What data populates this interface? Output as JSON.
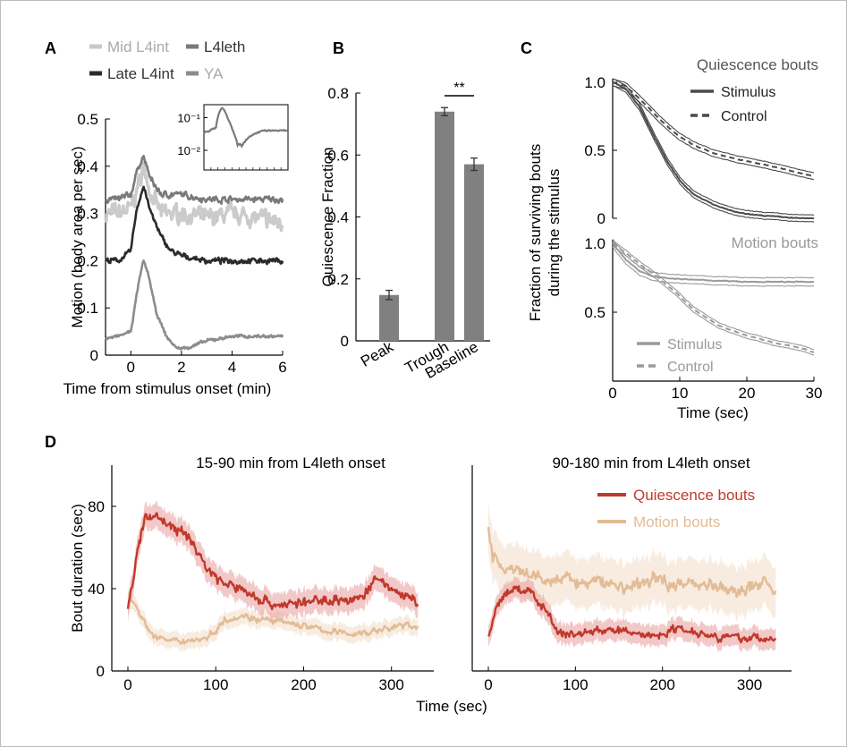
{
  "figure": {
    "frame_color": "#bdbdbd"
  },
  "chart_data": [
    {
      "panel": "A",
      "type": "line",
      "xlabel": "Time from stimulus onset (min)",
      "ylabel": "Motion (body area per sec)",
      "xlim": [
        -1,
        6
      ],
      "ylim": [
        0,
        0.5
      ],
      "xticks": [
        0,
        2,
        4,
        6
      ],
      "yticks": [
        0,
        0.1,
        0.2,
        0.3,
        0.4,
        0.5
      ],
      "xtick_labels": [
        "0",
        "2",
        "4",
        "6"
      ],
      "ytick_labels": [
        "0",
        "0.1",
        "0.2",
        "0.3",
        "0.4",
        "0.5"
      ],
      "legend": {
        "placement": "top",
        "entries": [
          {
            "label": "Mid L4int",
            "color": "#c8c8c8"
          },
          {
            "label": "L4leth",
            "color": "#7a7a7a"
          },
          {
            "label": "Late L4int",
            "color": "#2b2b2b"
          },
          {
            "label": "YA",
            "color": "#8c8c8c"
          }
        ]
      },
      "series": [
        {
          "name": "Mid L4int",
          "color": "#c8c8c8",
          "noise": 0.022,
          "x": [
            -1,
            -0.5,
            0,
            0.3,
            0.5,
            0.8,
            1.2,
            2,
            3,
            4,
            5,
            6
          ],
          "y": [
            0.3,
            0.3,
            0.31,
            0.36,
            0.4,
            0.34,
            0.3,
            0.3,
            0.29,
            0.3,
            0.29,
            0.28
          ]
        },
        {
          "name": "L4leth",
          "color": "#7a7a7a",
          "noise": 0.008,
          "x": [
            -1,
            -0.5,
            0,
            0.3,
            0.5,
            0.8,
            1.2,
            2,
            3,
            4,
            5,
            6
          ],
          "y": [
            0.33,
            0.33,
            0.34,
            0.4,
            0.42,
            0.37,
            0.34,
            0.34,
            0.33,
            0.33,
            0.33,
            0.33
          ]
        },
        {
          "name": "Late L4int",
          "color": "#2b2b2b",
          "noise": 0.007,
          "x": [
            -1,
            -0.5,
            0,
            0.2,
            0.5,
            0.8,
            1.2,
            1.6,
            2,
            3,
            4,
            5,
            6
          ],
          "y": [
            0.2,
            0.2,
            0.22,
            0.3,
            0.36,
            0.3,
            0.25,
            0.22,
            0.21,
            0.2,
            0.2,
            0.2,
            0.2
          ]
        },
        {
          "name": "YA",
          "color": "#8c8c8c",
          "noise": 0.004,
          "x": [
            -1,
            -0.5,
            0,
            0.3,
            0.5,
            0.7,
            1.0,
            1.4,
            1.8,
            2.2,
            3,
            4,
            5,
            6
          ],
          "y": [
            0.035,
            0.04,
            0.05,
            0.15,
            0.2,
            0.17,
            0.09,
            0.04,
            0.015,
            0.015,
            0.03,
            0.04,
            0.04,
            0.04
          ]
        }
      ],
      "inset": {
        "yscale": "log",
        "ytick_labels": [
          "10⁻¹",
          "10⁻²"
        ],
        "yticks": [
          0.1,
          0.01
        ],
        "ylim": [
          0.0025,
          0.25
        ],
        "xlim": [
          -1,
          6
        ],
        "series": {
          "name": "YA",
          "color": "#7a7a7a",
          "x": [
            -1,
            -0.5,
            0,
            0.3,
            0.5,
            0.7,
            1.0,
            1.4,
            1.8,
            2.2,
            3,
            4,
            5,
            6
          ],
          "y": [
            0.035,
            0.04,
            0.05,
            0.15,
            0.2,
            0.17,
            0.09,
            0.04,
            0.015,
            0.015,
            0.03,
            0.04,
            0.04,
            0.04
          ]
        }
      }
    },
    {
      "panel": "B",
      "type": "bar",
      "categories": [
        "Peak",
        "Trough",
        "Baseline"
      ],
      "values": [
        0.148,
        0.74,
        0.57
      ],
      "errors": [
        0.015,
        0.013,
        0.02
      ],
      "ylabel": "Quiescence Fraction",
      "ylim": [
        0,
        0.8
      ],
      "yticks": [
        0,
        0.2,
        0.4,
        0.6,
        0.8
      ],
      "ytick_labels": [
        "0",
        "0.2",
        "0.4",
        "0.6",
        "0.8"
      ],
      "bar_color": "#808080",
      "annotation": {
        "text": "**",
        "between": [
          "Trough",
          "Baseline"
        ]
      }
    },
    {
      "panel": "C",
      "type": "line",
      "xlabel": "Time (sec)",
      "ylabel_lines": [
        "Fraction of surviving bouts",
        "during the stimulus"
      ],
      "xlim": [
        0,
        30
      ],
      "xticks": [
        0,
        10,
        20,
        30
      ],
      "xtick_labels": [
        "0",
        "10",
        "20",
        "30"
      ],
      "subplots": [
        {
          "title": "Quiescence bouts",
          "color": "#4a4a4a",
          "ylim": [
            0,
            1
          ],
          "yticks": [
            0,
            0.5,
            1
          ],
          "ytick_labels": [
            "0",
            "0.5",
            "1.0"
          ],
          "legend": [
            {
              "label": "Stimulus",
              "style": "solid"
            },
            {
              "label": "Control",
              "style": "dashed"
            }
          ],
          "series": [
            {
              "name": "Stimulus",
              "style": "solid",
              "ci": 0.025,
              "x": [
                0,
                2,
                4,
                6,
                8,
                10,
                12,
                15,
                18,
                20,
                25,
                28,
                30
              ],
              "y": [
                1.0,
                0.95,
                0.82,
                0.62,
                0.43,
                0.28,
                0.18,
                0.1,
                0.05,
                0.03,
                0.01,
                0.0,
                0.0
              ]
            },
            {
              "name": "Control",
              "style": "dashed",
              "ci": 0.025,
              "x": [
                0,
                2,
                4,
                6,
                8,
                10,
                12,
                15,
                18,
                20,
                25,
                28,
                30
              ],
              "y": [
                1.0,
                0.97,
                0.88,
                0.78,
                0.68,
                0.6,
                0.54,
                0.48,
                0.44,
                0.42,
                0.37,
                0.33,
                0.31
              ]
            }
          ]
        },
        {
          "title": "Motion bouts",
          "color": "#9a9a9a",
          "ylim": [
            0,
            1
          ],
          "yticks": [
            0.5,
            1
          ],
          "ytick_labels": [
            "0.5",
            "1.0"
          ],
          "legend": [
            {
              "label": "Stimulus",
              "style": "solid"
            },
            {
              "label": "Control",
              "style": "dashed"
            }
          ],
          "series": [
            {
              "name": "Stimulus",
              "style": "solid",
              "ci": 0.03,
              "x": [
                0,
                2,
                4,
                6,
                8,
                10,
                15,
                20,
                25,
                30
              ],
              "y": [
                1.0,
                0.88,
                0.8,
                0.76,
                0.75,
                0.74,
                0.73,
                0.72,
                0.72,
                0.72
              ]
            },
            {
              "name": "Control",
              "style": "dashed",
              "ci": 0.02,
              "x": [
                0,
                2,
                4,
                6,
                8,
                10,
                12,
                14,
                16,
                20,
                24,
                28,
                30
              ],
              "y": [
                1.0,
                0.93,
                0.85,
                0.78,
                0.7,
                0.62,
                0.52,
                0.46,
                0.4,
                0.33,
                0.28,
                0.24,
                0.21
              ]
            }
          ]
        }
      ]
    },
    {
      "panel": "D",
      "type": "line",
      "xlabel": "Time (sec)",
      "ylabel": "Bout duration (sec)",
      "ylim": [
        0,
        100
      ],
      "yticks": [
        0,
        40,
        80
      ],
      "ytick_labels": [
        "0",
        "40",
        "80"
      ],
      "xlim": [
        0,
        340
      ],
      "xticks": [
        0,
        100,
        200,
        300
      ],
      "xtick_labels": [
        "0",
        "100",
        "200",
        "300"
      ],
      "legend": [
        {
          "label": "Quiescence bouts",
          "color": "#c0392b"
        },
        {
          "label": "Motion bouts",
          "color": "#e2bc96"
        }
      ],
      "subplots": [
        {
          "title": "15-90 min from L4leth onset",
          "series": [
            {
              "name": "Quiescence bouts",
              "color": "#c0392b",
              "band": "#e79a9a",
              "noise": 3,
              "ci": 6,
              "x": [
                0,
                10,
                20,
                30,
                50,
                70,
                90,
                110,
                130,
                150,
                170,
                200,
                230,
                260,
                285,
                300,
                320,
                330
              ],
              "y": [
                30,
                55,
                75,
                76,
                70,
                65,
                50,
                42,
                40,
                35,
                32,
                33,
                35,
                34,
                45,
                40,
                35,
                33
              ]
            },
            {
              "name": "Motion bouts",
              "color": "#e2bc96",
              "band": "#f2dcc6",
              "noise": 2,
              "ci": 4,
              "x": [
                0,
                10,
                20,
                30,
                50,
                70,
                90,
                100,
                110,
                130,
                150,
                170,
                200,
                230,
                260,
                290,
                310,
                330
              ],
              "y": [
                36,
                32,
                22,
                17,
                14,
                15,
                16,
                20,
                25,
                27,
                25,
                24,
                22,
                19,
                18,
                20,
                22,
                22
              ]
            }
          ]
        },
        {
          "title": "90-180 min from L4leth onset",
          "series": [
            {
              "name": "Quiescence bouts",
              "color": "#c0392b",
              "band": "#e79a9a",
              "noise": 2.5,
              "ci": 5,
              "x": [
                0,
                10,
                20,
                30,
                50,
                60,
                70,
                80,
                100,
                130,
                160,
                190,
                220,
                250,
                280,
                310,
                330
              ],
              "y": [
                15,
                32,
                38,
                40,
                38,
                32,
                28,
                18,
                18,
                20,
                19,
                17,
                21,
                18,
                16,
                16,
                15
              ]
            },
            {
              "name": "Motion bouts",
              "color": "#e2bc96",
              "band": "#f2dcc6",
              "noise": 4,
              "ci": 12,
              "x": [
                0,
                5,
                15,
                30,
                50,
                70,
                90,
                110,
                130,
                160,
                190,
                220,
                250,
                280,
                300,
                320,
                330
              ],
              "y": [
                70,
                55,
                50,
                48,
                46,
                43,
                45,
                42,
                44,
                40,
                45,
                42,
                43,
                38,
                40,
                45,
                36
              ]
            }
          ]
        }
      ]
    }
  ]
}
